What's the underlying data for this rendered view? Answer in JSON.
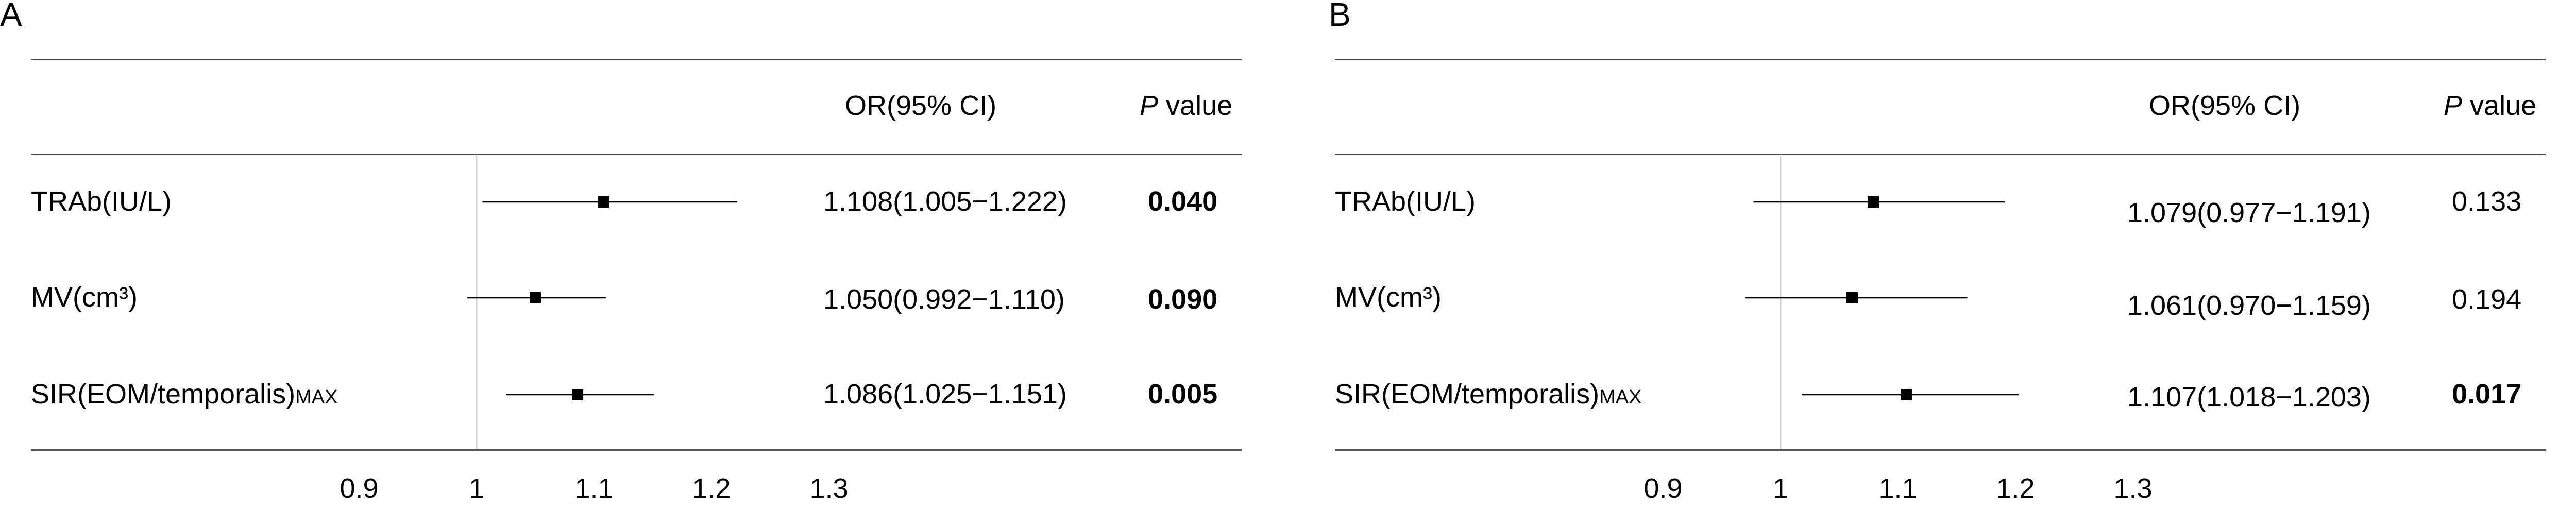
{
  "chart_data": [
    {
      "type": "forest",
      "panel_label": "A",
      "header": {
        "or_label": "OR(95% CI)",
        "p_label_italic": "P",
        "p_label_rest": " value"
      },
      "x_ticks": [
        0.9,
        1,
        1.1,
        1.2,
        1.3
      ],
      "x_tick_labels": [
        "0.9",
        "1",
        "1.1",
        "1.2",
        "1.3"
      ],
      "reference_line": 1,
      "rows": [
        {
          "label": "TRAb(IU/L)",
          "label_sub": "",
          "or": 1.108,
          "lower": 1.005,
          "upper": 1.222,
          "ci_text": "1.108(1.005−1.222)",
          "p": "0.040",
          "p_bold": true
        },
        {
          "label": "MV(cm³)",
          "label_sub": "",
          "or": 1.05,
          "lower": 0.992,
          "upper": 1.11,
          "ci_text": "1.050(0.992−1.110)",
          "p": "0.090",
          "p_bold": true
        },
        {
          "label": "SIR(EOM/temporalis)",
          "label_sub": "MAX",
          "or": 1.086,
          "lower": 1.025,
          "upper": 1.151,
          "ci_text": "1.086(1.025−1.151)",
          "p": "0.005",
          "p_bold": true
        }
      ]
    },
    {
      "type": "forest",
      "panel_label": "B",
      "header": {
        "or_label": "OR(95% CI)",
        "p_label_italic": "P",
        "p_label_rest": " value"
      },
      "x_ticks": [
        0.9,
        1,
        1.1,
        1.2,
        1.3
      ],
      "x_tick_labels": [
        "0.9",
        "1",
        "1.1",
        "1.2",
        "1.3"
      ],
      "reference_line": 1,
      "rows": [
        {
          "label": "TRAb(IU/L)",
          "label_sub": "",
          "or": 1.079,
          "lower": 0.977,
          "upper": 1.191,
          "ci_text": "1.079(0.977−1.191)",
          "p": "0.133",
          "p_bold": false
        },
        {
          "label": "MV(cm³)",
          "label_sub": "",
          "or": 1.061,
          "lower": 0.97,
          "upper": 1.159,
          "ci_text": "1.061(0.970−1.159)",
          "p": "0.194",
          "p_bold": false
        },
        {
          "label": "SIR(EOM/temporalis)",
          "label_sub": "MAX",
          "or": 1.107,
          "lower": 1.018,
          "upper": 1.203,
          "ci_text": "1.107(1.018−1.203)",
          "p": "0.017",
          "p_bold": true
        }
      ]
    }
  ]
}
